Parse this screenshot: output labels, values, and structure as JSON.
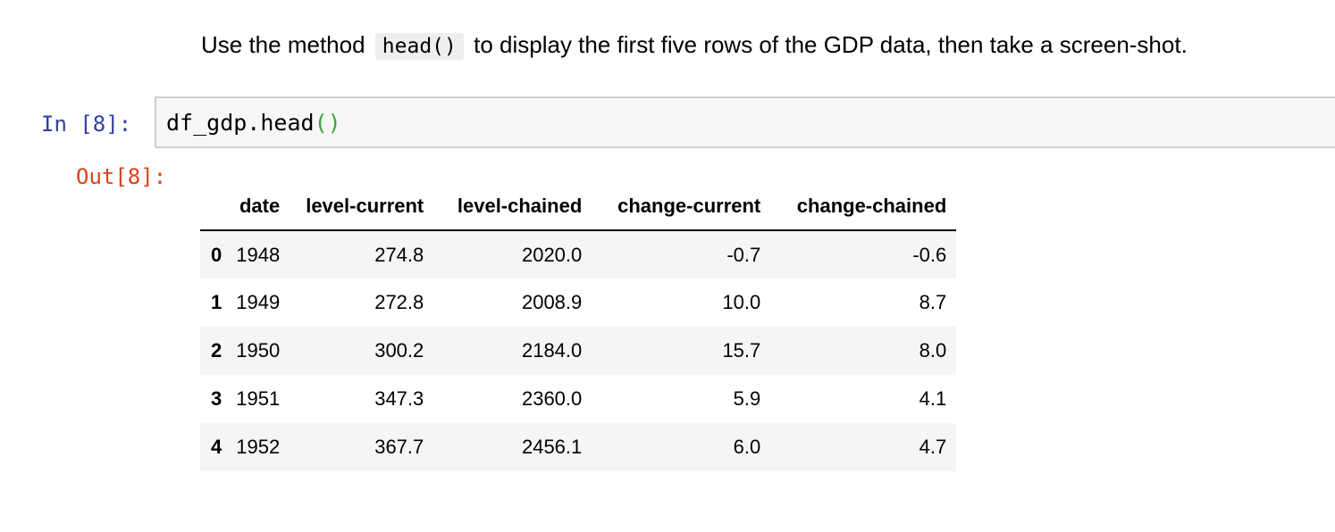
{
  "markdown": {
    "text_before": "Use the method ",
    "code": "head()",
    "text_after": " to display the first five rows of the GDP data, then take a screen-shot."
  },
  "input_cell": {
    "prompt": "In [8]:",
    "code_main": "df_gdp.head",
    "code_open": "(",
    "code_close": ")"
  },
  "output_cell": {
    "prompt": "Out[8]:",
    "table": {
      "columns": [
        "date",
        "level-current",
        "level-chained",
        "change-current",
        "change-chained"
      ],
      "rows": [
        {
          "index": "0",
          "cells": [
            "1948",
            "274.8",
            "2020.0",
            "-0.7",
            "-0.6"
          ]
        },
        {
          "index": "1",
          "cells": [
            "1949",
            "272.8",
            "2008.9",
            "10.0",
            "8.7"
          ]
        },
        {
          "index": "2",
          "cells": [
            "1950",
            "300.2",
            "2184.0",
            "15.7",
            "8.0"
          ]
        },
        {
          "index": "3",
          "cells": [
            "1951",
            "347.3",
            "2360.0",
            "5.9",
            "4.1"
          ]
        },
        {
          "index": "4",
          "cells": [
            "1952",
            "367.7",
            "2456.1",
            "6.0",
            "4.7"
          ]
        }
      ]
    }
  },
  "colors": {
    "in_prompt": "#303f9f",
    "out_prompt": "#d84315",
    "paren": "#3aa63a",
    "code_bg": "#f7f7f7",
    "stripe": "#f5f5f5"
  }
}
